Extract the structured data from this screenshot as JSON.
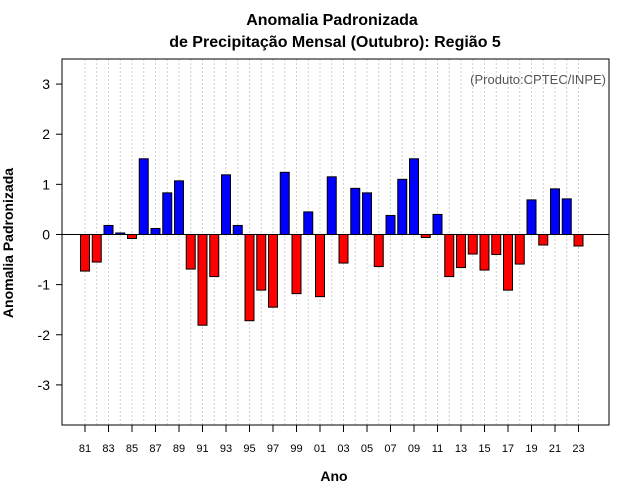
{
  "chart_data": {
    "type": "bar",
    "title_line1": "Anomalia Padronizada",
    "title_line2": "de Precipitação Mensal (Outubro): Região 5",
    "xlabel": "Ano",
    "ylabel": "Anomalia Padronizada",
    "annotation": "(Produto:CPTEC/INPE)",
    "ylim": [
      -3.8,
      3.5
    ],
    "yticks": [
      3,
      2,
      1,
      0,
      -1,
      -2,
      -3
    ],
    "ytick_labels": [
      "3",
      "2",
      "1",
      "0",
      "-1",
      "-2",
      "-3"
    ],
    "xtick_labels": [
      "81",
      "83",
      "85",
      "87",
      "89",
      "91",
      "93",
      "95",
      "97",
      "99",
      "01",
      "03",
      "05",
      "07",
      "09",
      "11",
      "13",
      "15",
      "17",
      "19",
      "21",
      "23"
    ],
    "positive_color": "#0000ff",
    "negative_color": "#ff0000",
    "categories": [
      "1981",
      "1982",
      "1983",
      "1984",
      "1985",
      "1986",
      "1987",
      "1988",
      "1989",
      "1990",
      "1991",
      "1992",
      "1993",
      "1994",
      "1995",
      "1996",
      "1997",
      "1998",
      "1999",
      "2000",
      "2001",
      "2002",
      "2003",
      "2004",
      "2005",
      "2006",
      "2007",
      "2008",
      "2009",
      "2010",
      "2011",
      "2012",
      "2013",
      "2014",
      "2015",
      "2016",
      "2017",
      "2018",
      "2019",
      "2020",
      "2021",
      "2022",
      "2023"
    ],
    "values": [
      -0.73,
      -0.55,
      0.18,
      0.03,
      -0.08,
      1.51,
      0.12,
      0.83,
      1.07,
      -0.69,
      -1.81,
      -0.84,
      1.19,
      0.18,
      -1.72,
      -1.11,
      -1.45,
      1.24,
      -1.18,
      0.45,
      -1.24,
      1.15,
      -0.57,
      0.92,
      0.83,
      -0.64,
      0.38,
      1.1,
      1.51,
      -0.06,
      0.4,
      -0.84,
      -0.66,
      -0.39,
      -0.71,
      -0.4,
      -1.11,
      -0.59,
      0.69,
      -0.21,
      0.91,
      0.71,
      -0.23
    ]
  }
}
